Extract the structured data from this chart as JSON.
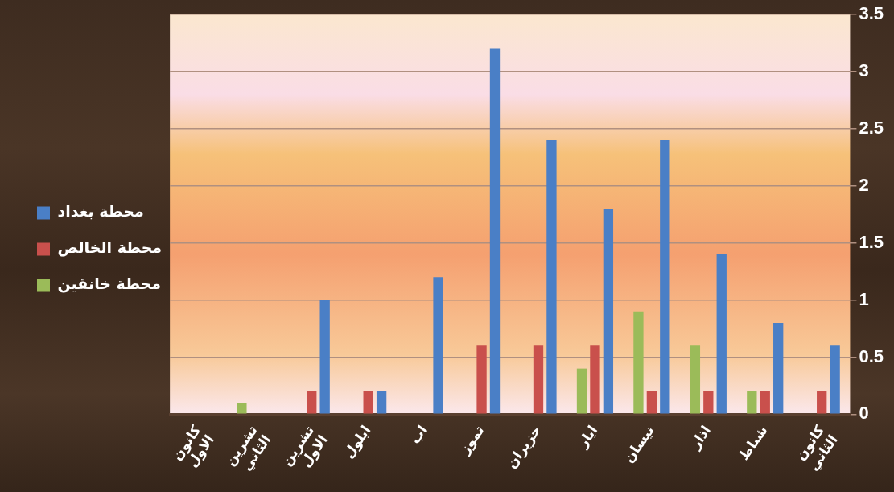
{
  "chart_data": {
    "type": "bar",
    "categories": [
      "كانون الاول",
      "تشرين الثاني",
      "تشرين الاول",
      "ايلول",
      "اب",
      "تموز",
      "حزيران",
      "ايار",
      "نيسان",
      "اذار",
      "شباط",
      "كانون الثاني"
    ],
    "series": [
      {
        "name": "محطة بغداد",
        "color": "#4a7fc6",
        "values": [
          0,
          0,
          1.0,
          0.2,
          1.2,
          3.2,
          2.4,
          1.8,
          2.4,
          1.4,
          0.8,
          0.6
        ]
      },
      {
        "name": "محطة الخالص",
        "color": "#c9504c",
        "values": [
          0,
          0,
          0.2,
          0.2,
          0,
          0.6,
          0.6,
          0.6,
          0.2,
          0.2,
          0.2,
          0.2
        ]
      },
      {
        "name": "محطة خانقين",
        "color": "#9bbb59",
        "values": [
          0,
          0.1,
          0,
          0,
          0,
          0,
          0,
          0.4,
          0.9,
          0.6,
          0.2,
          0
        ]
      }
    ],
    "ylim": [
      0,
      3.5
    ],
    "yticks": [
      0,
      0.5,
      1,
      1.5,
      2,
      2.5,
      3,
      3.5
    ],
    "grid": "y",
    "legend": "left"
  }
}
